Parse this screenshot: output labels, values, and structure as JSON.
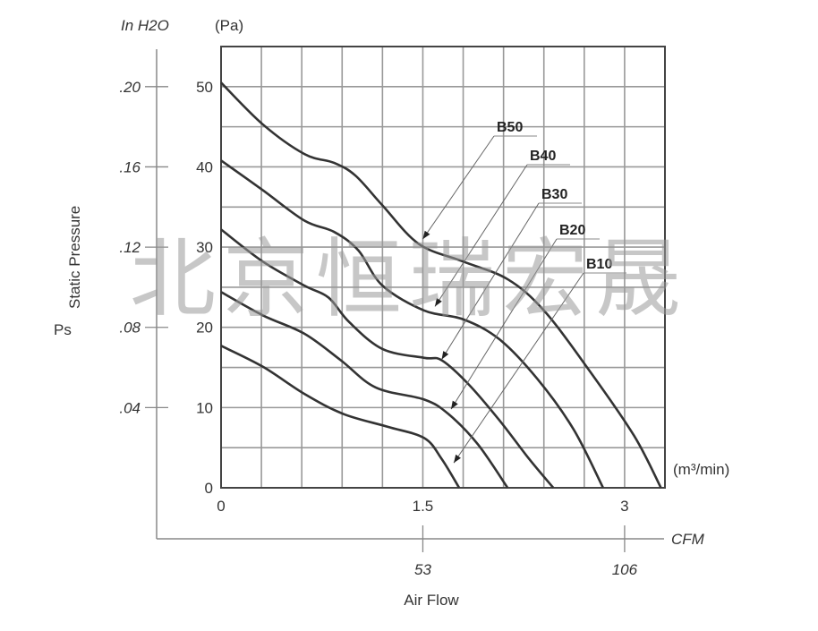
{
  "watermark": "北京恒瑞宏晟",
  "chart_data": {
    "type": "line",
    "title": "",
    "ylabel": "Ps Static Pressure",
    "ylabel_symbol": "Ps",
    "ylabel_text": "Static Pressure",
    "y_unit_primary": "(Pa)",
    "y_unit_secondary": "In H2O",
    "x_unit_primary": "(m³/min)",
    "x_unit_secondary": "CFM",
    "xlabel": "Air Flow",
    "xlim": [
      0,
      3.3
    ],
    "ylim": [
      0,
      55
    ],
    "grid": true,
    "grid_step_x": 0.3,
    "grid_step_y": 5,
    "x_ticks": [
      {
        "value": 0,
        "label": "0"
      },
      {
        "value": 1.5,
        "label": "1.5"
      },
      {
        "value": 3,
        "label": "3"
      }
    ],
    "y_ticks": [
      {
        "value": 0,
        "label": "0"
      },
      {
        "value": 10,
        "label": "10"
      },
      {
        "value": 20,
        "label": "20"
      },
      {
        "value": 30,
        "label": "30"
      },
      {
        "value": 40,
        "label": "40"
      },
      {
        "value": 50,
        "label": "50"
      }
    ],
    "y2_ticks": [
      {
        "value": 10,
        "label": ".04"
      },
      {
        "value": 20,
        "label": ".08"
      },
      {
        "value": 30,
        "label": ".12"
      },
      {
        "value": 40,
        "label": ".16"
      },
      {
        "value": 50,
        "label": ".20"
      }
    ],
    "x2_ticks": [
      {
        "value": 1.5,
        "label": "53"
      },
      {
        "value": 3,
        "label": "106"
      }
    ],
    "series": [
      {
        "name": "B50",
        "x": [
          0,
          0.31,
          0.62,
          0.84,
          1.0,
          1.2,
          1.47,
          1.8,
          2.13,
          2.4,
          2.73,
          3.07,
          3.27
        ],
        "y": [
          50.5,
          45.3,
          41.6,
          40.5,
          38.9,
          35.2,
          30.4,
          28.2,
          26.0,
          22.1,
          14.8,
          6.5,
          0
        ]
      },
      {
        "name": "B40",
        "x": [
          0,
          0.31,
          0.62,
          0.84,
          1.02,
          1.2,
          1.51,
          1.8,
          2.07,
          2.35,
          2.62,
          2.84
        ],
        "y": [
          40.8,
          37.1,
          33.3,
          31.9,
          29.6,
          25.2,
          22.1,
          21.0,
          18.5,
          13.6,
          7.3,
          0
        ]
      },
      {
        "name": "B30",
        "x": [
          0,
          0.31,
          0.62,
          0.8,
          0.95,
          1.2,
          1.51,
          1.64,
          1.84,
          2.07,
          2.29,
          2.47
        ],
        "y": [
          32.2,
          28.2,
          25.2,
          23.7,
          20.7,
          17.3,
          16.2,
          15.9,
          12.9,
          8.4,
          3.6,
          0
        ]
      },
      {
        "name": "B20",
        "x": [
          0,
          0.31,
          0.62,
          0.89,
          1.15,
          1.51,
          1.69,
          1.91,
          2.13
        ],
        "y": [
          24.4,
          21.5,
          19.2,
          15.9,
          12.5,
          11.0,
          9.2,
          5.4,
          0
        ]
      },
      {
        "name": "B10",
        "x": [
          0,
          0.31,
          0.62,
          0.91,
          1.24,
          1.51,
          1.64,
          1.77
        ],
        "y": [
          17.7,
          15.1,
          11.7,
          9.2,
          7.6,
          6.2,
          3.6,
          0
        ]
      }
    ],
    "annotations": [
      {
        "series": "B50",
        "text": "B50",
        "points_to": [
          1.5,
          31
        ]
      },
      {
        "series": "B40",
        "text": "B40",
        "points_to": [
          1.59,
          22.6
        ]
      },
      {
        "series": "B30",
        "text": "B30",
        "points_to": [
          1.64,
          16
        ]
      },
      {
        "series": "B20",
        "text": "B20",
        "points_to": [
          1.71,
          9.8
        ]
      },
      {
        "series": "B10",
        "text": "B10",
        "points_to": [
          1.73,
          3.1
        ]
      }
    ]
  }
}
